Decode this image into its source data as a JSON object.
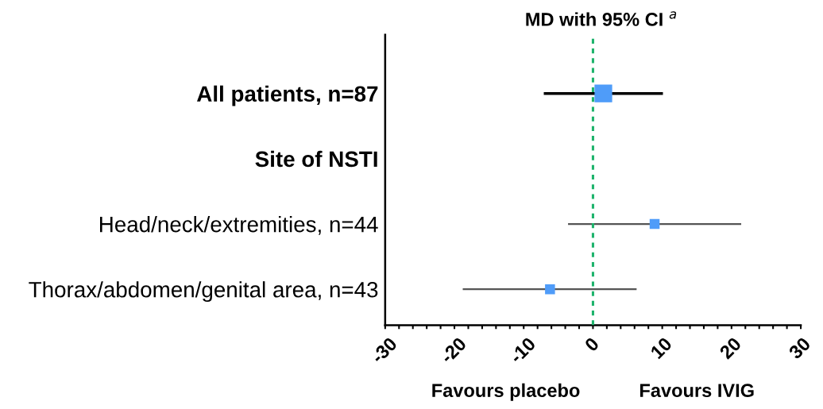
{
  "chart_data": {
    "type": "scatter",
    "title": "MD with 95% CI $^{a}$",
    "orientation": "horizontal",
    "categories": [
      "All patients, n=87",
      "Site of NSTI",
      "Head/neck/extremities, n=44",
      "Thorax/abdomen/genital area, n=43"
    ],
    "series": [
      {
        "color": "#4f9cf9",
        "values": [
          1.5,
          null,
          null,
          null
        ],
        "errors": [
          [
            -7.1,
            10.1
          ],
          null,
          null,
          null
        ]
      },
      {
        "color": "#4f9cf9",
        "values": [
          null,
          null,
          8.9,
          -6.2
        ],
        "errors": [
          null,
          null,
          [
            -3.6,
            21.4
          ],
          [
            -18.8,
            6.3
          ]
        ]
      }
    ],
    "xlim": [
      -30,
      30
    ],
    "xticks": [
      -30,
      {
        "value": -28,
        "label": null
      },
      {
        "value": -26,
        "label": null
      },
      {
        "value": -24,
        "label": null
      },
      {
        "value": -22,
        "label": null
      },
      -20,
      {
        "value": -18,
        "label": null
      },
      {
        "value": -16,
        "label": null
      },
      {
        "value": -14,
        "label": null
      },
      {
        "value": -12,
        "label": null
      },
      -10,
      {
        "value": -8,
        "label": null
      },
      {
        "value": -6,
        "label": null
      },
      {
        "value": -4,
        "label": null
      },
      {
        "value": -2,
        "label": null
      },
      0,
      {
        "value": 2,
        "label": null
      },
      {
        "value": 4,
        "label": null
      },
      {
        "value": 6,
        "label": null
      },
      {
        "value": 8,
        "label": null
      },
      10,
      {
        "value": 12,
        "label": null
      },
      {
        "value": 14,
        "label": null
      },
      {
        "value": 16,
        "label": null
      },
      {
        "value": 18,
        "label": null
      },
      20,
      {
        "value": 22,
        "label": null
      },
      {
        "value": 24,
        "label": null
      },
      {
        "value": 26,
        "label": null
      },
      {
        "value": 28,
        "label": null
      },
      30
    ],
    "ref_lines": [
      {
        "axis": "x",
        "value": 0,
        "label": null,
        "color": "#1db36b",
        "line_style": "dashed"
      }
    ],
    "annotations": [
      "Favours placebo",
      "Favours IVIG"
    ],
    "marker": "square",
    "grid": false,
    "legend": false
  }
}
